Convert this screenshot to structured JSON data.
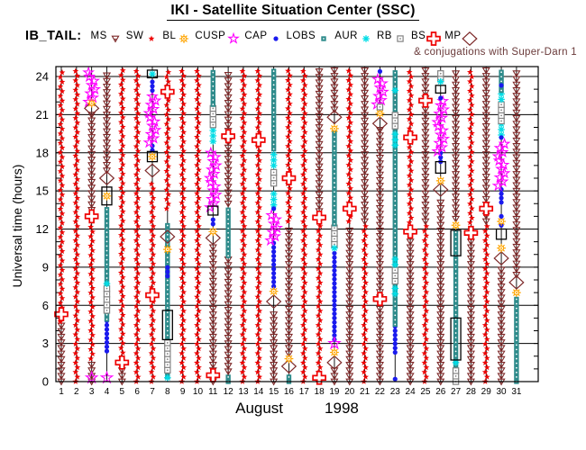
{
  "title": "IKI - Satellite Situation Center (SSC)",
  "legend": {
    "prefix": "IB_TAIL:",
    "items": [
      {
        "label": "MS",
        "symbol": "MS"
      },
      {
        "label": "SW",
        "symbol": "SW"
      },
      {
        "label": "BL",
        "symbol": "BL"
      },
      {
        "label": "CUSP",
        "symbol": "CUSP"
      },
      {
        "label": "CAP",
        "symbol": "CAP"
      },
      {
        "label": "LOBS",
        "symbol": "LOBS"
      },
      {
        "label": "AUR",
        "symbol": "AUR"
      },
      {
        "label": "RB",
        "symbol": "RB"
      },
      {
        "label": "BS",
        "symbol": "BS"
      },
      {
        "label": "MP",
        "symbol": "MP"
      }
    ],
    "note": "& conjugations with Super-Darn 1"
  },
  "axes": {
    "y_title": "Universal time (hours)",
    "x_title_month": "August",
    "x_title_year": "1998"
  },
  "colors": {
    "SW": "#ee0000",
    "MS": "#7e2a2a",
    "BL": "#ffa500",
    "CUSP": "#ff00ff",
    "CAP": "#1a1aee",
    "LOBS": "#2e8b8b",
    "AUR": "#00dde6",
    "RB": "#838383",
    "BS": "#ee0000",
    "MP": "#7e2a2a",
    "BOX": "#000000",
    "note_text": "#6a3a3a",
    "frame": "#000000"
  },
  "chart_data": {
    "type": "scatter",
    "title": "IKI - Satellite Situation Center (SSC)",
    "xlabel": "August 1998 (day of month)",
    "ylabel": "Universal time (hours)",
    "xlim": [
      0.6,
      32.4
    ],
    "ylim": [
      0,
      24.8
    ],
    "y_ticks": [
      0,
      3,
      6,
      9,
      12,
      15,
      18,
      21,
      24
    ],
    "y_minor_step": 1,
    "x_days": [
      1,
      2,
      3,
      4,
      5,
      6,
      7,
      8,
      9,
      10,
      11,
      12,
      13,
      14,
      15,
      16,
      17,
      18,
      19,
      20,
      21,
      22,
      23,
      24,
      25,
      26,
      27,
      28,
      29,
      30,
      31
    ],
    "grid": "on",
    "legend_position": "top",
    "series_note": "Per-day vertical symbol columns; seg = [symbol, t_start_h, t_end_h], mk = point markers [symbol, t_h] (BOX = black conjunction rectangle [t1, t2])",
    "days": [
      {
        "d": 1,
        "seg": [
          [
            "MS",
            0,
            4.4
          ],
          [
            "SW",
            4.7,
            24.5
          ]
        ],
        "mk": [
          [
            "BS",
            5.3
          ]
        ]
      },
      {
        "d": 2,
        "seg": [
          [
            "SW",
            0,
            24.5
          ]
        ],
        "mk": []
      },
      {
        "d": 3,
        "seg": [
          [
            "MS",
            0,
            1.6
          ],
          [
            "SW",
            1.8,
            12.5
          ],
          [
            "MS",
            13.5,
            21.1
          ],
          [
            "CUSP",
            22.0,
            24.5
          ]
        ],
        "mk": [
          [
            "CUSP",
            0.3
          ],
          [
            "BS",
            13.0
          ],
          [
            "MP",
            21.5
          ],
          [
            "BL",
            21.9
          ]
        ]
      },
      {
        "d": 4,
        "seg": [
          [
            "CAP",
            2.4,
            4.8
          ],
          [
            "LOBS",
            4.9,
            13.8
          ],
          [
            "RB",
            5.6,
            7.4
          ],
          [
            "MS",
            16.6,
            24.5
          ]
        ],
        "mk": [
          [
            "CUSP",
            0.3
          ],
          [
            "AUR",
            7.7
          ],
          [
            "BOX",
            13.9,
            15.3
          ],
          [
            "BL",
            14.6
          ],
          [
            "MP",
            16.0
          ]
        ]
      },
      {
        "d": 5,
        "seg": [
          [
            "MS",
            0,
            0.9
          ],
          [
            "SW",
            1.9,
            24.5
          ]
        ],
        "mk": [
          [
            "BS",
            1.5
          ]
        ]
      },
      {
        "d": 6,
        "seg": [
          [
            "SW",
            0,
            24.5
          ]
        ],
        "mk": []
      },
      {
        "d": 7,
        "seg": [
          [
            "SW",
            0,
            15.9
          ],
          [
            "CAP",
            18.2,
            18.7
          ],
          [
            "CUSP",
            18.8,
            22.7
          ],
          [
            "CAP",
            22.9,
            23.8
          ]
        ],
        "mk": [
          [
            "BS",
            6.8
          ],
          [
            "MP",
            16.6
          ],
          [
            "BOX",
            17.3,
            18.1
          ],
          [
            "BL",
            17.7
          ],
          [
            "BOX",
            23.9,
            24.5
          ],
          [
            "AUR",
            24.2
          ]
        ]
      },
      {
        "d": 8,
        "seg": [
          [
            "LOBS",
            0.4,
            12.6
          ],
          [
            "RB",
            0.9,
            3.1
          ],
          [
            "CAP",
            8.3,
            9.0
          ],
          [
            "SW",
            13.6,
            24.5
          ]
        ],
        "mk": [
          [
            "AUR",
            0.3
          ],
          [
            "BOX",
            3.3,
            5.6
          ],
          [
            "BL",
            10.4
          ],
          [
            "MP",
            11.4
          ],
          [
            "BS",
            22.8
          ]
        ]
      },
      {
        "d": 9,
        "seg": [
          [
            "SW",
            0,
            24.5
          ]
        ],
        "mk": []
      },
      {
        "d": 10,
        "seg": [
          [
            "SW",
            0,
            24.5
          ]
        ],
        "mk": []
      },
      {
        "d": 11,
        "seg": [
          [
            "MS",
            0,
            10.9
          ],
          [
            "CAP",
            12.4,
            13.0
          ],
          [
            "CUSP",
            13.7,
            18.3
          ],
          [
            "AUR",
            18.9,
            19.8
          ],
          [
            "RB",
            20.2,
            21.5
          ],
          [
            "LOBS",
            21.8,
            24.5
          ]
        ],
        "mk": [
          [
            "BS",
            0.5
          ],
          [
            "MP",
            11.3
          ],
          [
            "BL",
            11.8
          ],
          [
            "BOX",
            13.1,
            13.8
          ]
        ]
      },
      {
        "d": 12,
        "seg": [
          [
            "LOBS",
            0,
            0.4
          ],
          [
            "MS",
            0.8,
            9.7
          ],
          [
            "LOBS",
            9.9,
            13.7
          ],
          [
            "MS",
            14.0,
            24.5
          ]
        ],
        "mk": [
          [
            "BS",
            19.3
          ]
        ]
      },
      {
        "d": 13,
        "seg": [
          [
            "SW",
            0,
            24.5
          ]
        ],
        "mk": []
      },
      {
        "d": 14,
        "seg": [
          [
            "SW",
            0,
            24.5
          ]
        ],
        "mk": [
          [
            "BS",
            19.0
          ]
        ]
      },
      {
        "d": 15,
        "seg": [
          [
            "MS",
            0,
            5.7
          ],
          [
            "CAP",
            7.5,
            11.0
          ],
          [
            "CUSP",
            11.1,
            13.4
          ],
          [
            "AUR",
            13.9,
            15.0
          ],
          [
            "RB",
            15.6,
            16.5
          ],
          [
            "AUR",
            17.0,
            17.9
          ],
          [
            "LOBS",
            18.3,
            24.5
          ]
        ],
        "mk": [
          [
            "MP",
            6.3
          ],
          [
            "BL",
            7.1
          ],
          [
            "CAP",
            13.6
          ]
        ]
      },
      {
        "d": 16,
        "seg": [
          [
            "LOBS",
            0,
            0.5
          ],
          [
            "MS",
            2.2,
            12.3
          ],
          [
            "SW",
            12.6,
            24.5
          ]
        ],
        "mk": [
          [
            "MP",
            1.2
          ],
          [
            "BL",
            1.8
          ],
          [
            "BS",
            16.0
          ]
        ]
      },
      {
        "d": 17,
        "seg": [
          [
            "SW",
            0,
            24.5
          ]
        ],
        "mk": []
      },
      {
        "d": 18,
        "seg": [
          [
            "SW",
            0,
            12.3
          ],
          [
            "MS",
            13.4,
            24.5
          ]
        ],
        "mk": [
          [
            "BS",
            0.3
          ],
          [
            "BS",
            12.9
          ]
        ]
      },
      {
        "d": 19,
        "seg": [
          [
            "MS",
            0,
            0.9
          ],
          [
            "CAP",
            3.3,
            10.2
          ],
          [
            "RB",
            10.8,
            12.2
          ],
          [
            "LOBS",
            12.4,
            19.6
          ],
          [
            "MS",
            21.4,
            24.5
          ]
        ],
        "mk": [
          [
            "MP",
            1.5
          ],
          [
            "BL",
            2.3
          ],
          [
            "CUSP",
            3.0
          ],
          [
            "AUR",
            10.5
          ],
          [
            "BL",
            19.9
          ],
          [
            "MP",
            20.8
          ]
        ]
      },
      {
        "d": 20,
        "seg": [
          [
            "MS",
            0,
            12.3
          ],
          [
            "SW",
            12.6,
            24.5
          ]
        ],
        "mk": [
          [
            "BS",
            13.6
          ]
        ]
      },
      {
        "d": 21,
        "seg": [
          [
            "SW",
            0,
            12.3
          ],
          [
            "MS",
            12.6,
            24.5
          ]
        ],
        "mk": []
      },
      {
        "d": 22,
        "seg": [
          [
            "MS",
            0,
            19.8
          ],
          [
            "CUSP",
            21.8,
            24.1
          ]
        ],
        "mk": [
          [
            "BS",
            6.5
          ],
          [
            "MP",
            20.3
          ],
          [
            "BL",
            21.1
          ],
          [
            "RB",
            21.6
          ],
          [
            "CAP",
            24.4
          ]
        ]
      },
      {
        "d": 23,
        "seg": [
          [
            "CAP",
            2.3,
            4.4
          ],
          [
            "LOBS",
            4.5,
            24.5
          ],
          [
            "AUR",
            6.9,
            7.7
          ],
          [
            "RB",
            7.9,
            8.8
          ],
          [
            "AUR",
            9.2,
            10.0
          ],
          [
            "AUR",
            18.6,
            19.5
          ],
          [
            "RB",
            20.1,
            21.2
          ]
        ],
        "mk": [
          [
            "CAP",
            0.2
          ],
          [
            "AUR",
            22.9
          ]
        ]
      },
      {
        "d": 24,
        "seg": [
          [
            "MS",
            0,
            11.3
          ],
          [
            "SW",
            12.5,
            24.5
          ]
        ],
        "mk": [
          [
            "BS",
            11.8
          ],
          [
            "BS",
            19.2
          ]
        ]
      },
      {
        "d": 25,
        "seg": [
          [
            "SW",
            0,
            12.3
          ],
          [
            "MS",
            12.6,
            24.5
          ]
        ],
        "mk": [
          [
            "BS",
            22.1
          ]
        ]
      },
      {
        "d": 26,
        "seg": [
          [
            "MS",
            0,
            14.5
          ],
          [
            "CAP",
            17.3,
            18.0
          ],
          [
            "CUSP",
            18.1,
            22.1
          ],
          [
            "CAP",
            22.3,
            22.6
          ],
          [
            "RB",
            23.8,
            24.5
          ]
        ],
        "mk": [
          [
            "MP",
            15.1
          ],
          [
            "BL",
            15.8
          ],
          [
            "BOX",
            16.4,
            17.3
          ],
          [
            "BOX",
            22.7,
            23.3
          ],
          [
            "AUR",
            23.6
          ]
        ]
      },
      {
        "d": 27,
        "seg": [
          [
            "RB",
            0,
            1.2
          ],
          [
            "LOBS",
            1.3,
            11.9
          ],
          [
            "MS",
            12.8,
            24.5
          ]
        ],
        "mk": [
          [
            "AUR",
            1.5
          ],
          [
            "BOX",
            1.7,
            5.0
          ],
          [
            "BOX",
            9.9,
            11.9
          ],
          [
            "BL",
            12.3
          ]
        ]
      },
      {
        "d": 28,
        "seg": [
          [
            "MS",
            0,
            11.3
          ],
          [
            "SW",
            12.5,
            24.5
          ]
        ],
        "mk": [
          [
            "BS",
            11.7
          ]
        ]
      },
      {
        "d": 29,
        "seg": [
          [
            "SW",
            0,
            12.3
          ],
          [
            "MS",
            12.6,
            24.5
          ]
        ],
        "mk": [
          [
            "BS",
            13.6
          ]
        ]
      },
      {
        "d": 30,
        "seg": [
          [
            "MS",
            0,
            9.2
          ],
          [
            "CAP",
            14.1,
            15.2
          ],
          [
            "CUSP",
            15.4,
            19.0
          ],
          [
            "AUR",
            19.4,
            20.3
          ],
          [
            "RB",
            20.5,
            22.0
          ],
          [
            "AUR",
            22.2,
            22.8
          ],
          [
            "LOBS",
            22.9,
            24.5
          ]
        ],
        "mk": [
          [
            "MP",
            9.7
          ],
          [
            "BL",
            10.5
          ],
          [
            "BOX",
            11.2,
            12.0
          ],
          [
            "CAP",
            12.3
          ],
          [
            "BL",
            12.6
          ],
          [
            "CAP",
            13.0
          ],
          [
            "CAP",
            19.2
          ],
          [
            "CAP",
            23.3
          ]
        ]
      },
      {
        "d": 31,
        "seg": [
          [
            "LOBS",
            0,
            6.5
          ],
          [
            "MS",
            8.4,
            24.5
          ]
        ],
        "mk": [
          [
            "BL",
            7.0
          ],
          [
            "MP",
            7.8
          ]
        ]
      }
    ]
  }
}
